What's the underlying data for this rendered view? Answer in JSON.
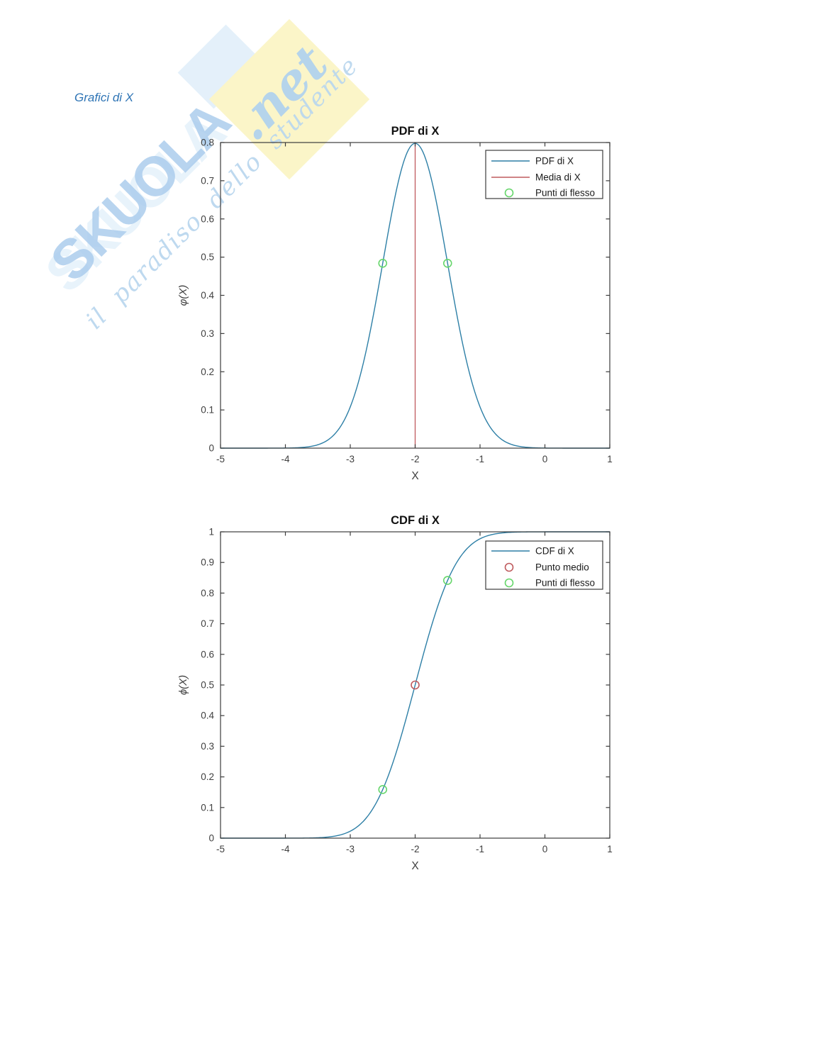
{
  "heading": {
    "text": "Grafici di X",
    "color": "#2e74b5"
  },
  "watermark": {
    "brand": "SKUOLA",
    "tld": ".net",
    "tagline": "il paradiso dello studente",
    "blue": "#a8cbea",
    "light_blue": "#cee4f6",
    "yellow": "#fbf5c8"
  },
  "colors": {
    "blue": "#2d7fa6",
    "red": "#bf5b5e",
    "green": "#66d66b",
    "axis": "#3c3c3c",
    "text": "#3f3f3f",
    "title": "#111111",
    "legend_text": "#1a1a1a"
  },
  "chart_data": [
    {
      "type": "line",
      "title": "PDF di X",
      "xlabel": "X",
      "ylabel": "φ(X)",
      "xlim": [
        -5,
        1
      ],
      "ylim": [
        0,
        0.8
      ],
      "grid": false,
      "legend_position": "upper-right-inside",
      "xticks": {
        "values": [
          -5,
          -4,
          -3,
          -2,
          -1,
          0,
          1
        ],
        "labels": [
          "-5",
          "-4",
          "-3",
          "-2",
          "-1",
          "0",
          "1"
        ]
      },
      "yticks": {
        "values": [
          0,
          0.1,
          0.2,
          0.3,
          0.4,
          0.5,
          0.6,
          0.7,
          0.8
        ],
        "labels": [
          "0",
          "0.1",
          "0.2",
          "0.3",
          "0.4",
          "0.5",
          "0.6",
          "0.7",
          "0.8"
        ]
      },
      "series": [
        {
          "name": "PDF di X",
          "kind": "normal-pdf",
          "mu": -2,
          "sigma": 0.5,
          "peak": 0.7979,
          "color_key": "blue"
        },
        {
          "name": "Media di X",
          "kind": "vline",
          "x": -2,
          "y": [
            0,
            0.7979
          ],
          "color_key": "red"
        },
        {
          "name": "Punti di flesso",
          "kind": "markers",
          "points": [
            [
              -2.5,
              0.4839
            ],
            [
              -1.5,
              0.4839
            ]
          ],
          "color_key": "green"
        }
      ]
    },
    {
      "type": "line",
      "title": "CDF di X",
      "xlabel": "X",
      "ylabel": "ϕ(X)",
      "xlim": [
        -5,
        1
      ],
      "ylim": [
        0,
        1
      ],
      "grid": false,
      "legend_position": "upper-right-inside",
      "xticks": {
        "values": [
          -5,
          -4,
          -3,
          -2,
          -1,
          0,
          1
        ],
        "labels": [
          "-5",
          "-4",
          "-3",
          "-2",
          "-1",
          "0",
          "1"
        ]
      },
      "yticks": {
        "values": [
          0,
          0.1,
          0.2,
          0.3,
          0.4,
          0.5,
          0.6,
          0.7,
          0.8,
          0.9,
          1
        ],
        "labels": [
          "0",
          "0.1",
          "0.2",
          "0.3",
          "0.4",
          "0.5",
          "0.6",
          "0.7",
          "0.8",
          "0.9",
          "1"
        ]
      },
      "series": [
        {
          "name": "CDF di X",
          "kind": "normal-cdf",
          "mu": -2,
          "sigma": 0.5,
          "color_key": "blue"
        },
        {
          "name": "Punto medio",
          "kind": "markers",
          "points": [
            [
              -2,
              0.5
            ]
          ],
          "color_key": "red"
        },
        {
          "name": "Punti di flesso",
          "kind": "markers",
          "points": [
            [
              -2.5,
              0.1587
            ],
            [
              -1.5,
              0.8413
            ]
          ],
          "color_key": "green"
        }
      ]
    }
  ]
}
